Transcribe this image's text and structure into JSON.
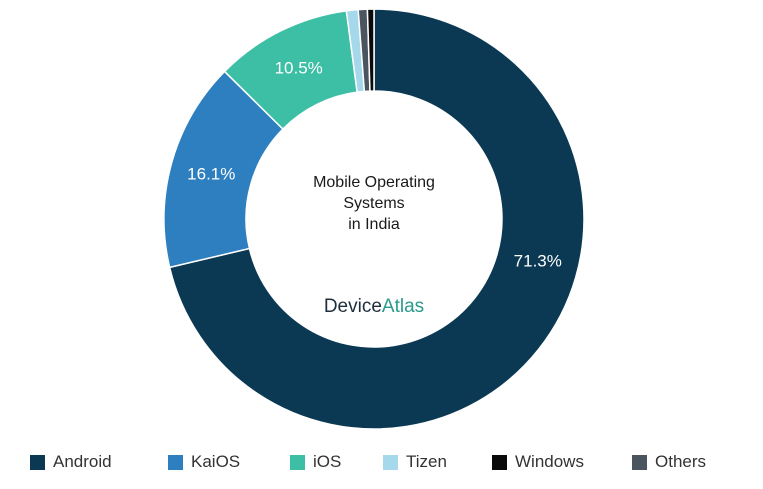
{
  "chart_data": {
    "type": "pie",
    "donut": true,
    "title_lines": [
      "Mobile Operating",
      "Systems",
      "in India"
    ],
    "brand": {
      "part1": "Device",
      "part2": "Atlas"
    },
    "categories": [
      "Android",
      "KaiOS",
      "iOS",
      "Tizen",
      "Windows",
      "Others"
    ],
    "values": [
      71.3,
      16.1,
      10.5,
      0.9,
      0.5,
      0.7
    ],
    "data_labels": [
      "71.3%",
      "16.1%",
      "10.5%",
      "",
      "",
      ""
    ],
    "colors": [
      "#0b3954",
      "#2e7fbf",
      "#3dbfa6",
      "#a6d8ec",
      "#0a0a0a",
      "#4a5560"
    ],
    "legend_position": "bottom"
  }
}
